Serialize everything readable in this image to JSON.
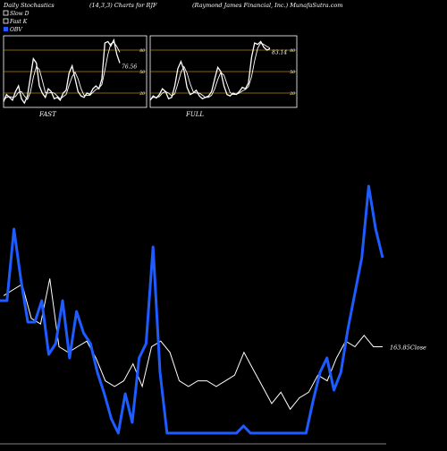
{
  "header": {
    "left": "Daily Stochastics",
    "center": "(14,3,3) Charts for RJF",
    "right": "(Raymond James Financial, Inc.) MunafaSutra.com"
  },
  "legend": [
    {
      "label": "Slow  D",
      "color": "#ffffff",
      "swatch": "box"
    },
    {
      "label": "Fast K",
      "color": "#ffffff",
      "swatch": "box"
    },
    {
      "label": "OBV",
      "color": "#1e5cff",
      "swatch": "fill"
    }
  ],
  "colors": {
    "background": "#000000",
    "accent": "#1e5cff",
    "guide": "#b8860b",
    "line": "#ffffff"
  },
  "chart_data": [
    {
      "type": "line",
      "title": "FAST",
      "ylim": [
        0,
        100
      ],
      "guides": [
        80,
        50,
        20
      ],
      "guide_labels": [
        "80",
        "50",
        "20"
      ],
      "last_label": "76.56",
      "series": [
        {
          "name": "Fast K",
          "values": [
            8,
            18,
            14,
            10,
            22,
            30,
            12,
            6,
            16,
            42,
            68,
            62,
            30,
            20,
            14,
            26,
            22,
            12,
            14,
            10,
            20,
            24,
            48,
            58,
            40,
            22,
            16,
            14,
            20,
            18,
            26,
            30,
            26,
            40,
            90,
            92,
            86,
            94,
            74,
            62
          ]
        },
        {
          "name": "Slow  D",
          "values": [
            10,
            14,
            15,
            14,
            15,
            21,
            22,
            16,
            11,
            21,
            42,
            57,
            53,
            38,
            21,
            20,
            21,
            20,
            16,
            12,
            15,
            18,
            31,
            43,
            49,
            40,
            26,
            17,
            17,
            17,
            21,
            25,
            27,
            32,
            52,
            74,
            89,
            91,
            85,
            77
          ]
        }
      ]
    },
    {
      "type": "line",
      "title": "FULL",
      "ylim": [
        0,
        100
      ],
      "guides": [
        80,
        50,
        20
      ],
      "guide_labels": [
        "80",
        "50",
        "20"
      ],
      "last_label": "83.14",
      "series": [
        {
          "name": "Fast K",
          "values": [
            10,
            16,
            13,
            18,
            26,
            22,
            12,
            14,
            30,
            54,
            64,
            52,
            28,
            18,
            20,
            24,
            16,
            12,
            14,
            16,
            22,
            40,
            56,
            50,
            30,
            18,
            16,
            20,
            18,
            22,
            28,
            26,
            34,
            70,
            90,
            88,
            92,
            84,
            80,
            82
          ]
        },
        {
          "name": "Slow  D",
          "values": [
            11,
            14,
            14,
            15,
            20,
            22,
            20,
            16,
            19,
            33,
            49,
            57,
            48,
            33,
            22,
            20,
            20,
            17,
            14,
            14,
            17,
            26,
            39,
            49,
            45,
            33,
            21,
            18,
            18,
            20,
            23,
            25,
            29,
            43,
            65,
            83,
            90,
            88,
            85,
            83
          ]
        }
      ]
    },
    {
      "type": "line",
      "close_label": "163.85Close",
      "series": [
        {
          "name": "Close",
          "values": [
            172,
            173,
            174,
            168,
            167,
            175,
            163,
            162,
            163,
            164,
            161,
            157,
            156,
            157,
            160,
            156,
            163,
            164,
            162,
            157,
            156,
            157,
            157,
            156,
            157,
            158,
            162,
            159,
            156,
            153,
            155,
            152,
            154,
            155,
            158,
            157,
            161,
            164,
            163,
            165,
            163,
            163
          ]
        },
        {
          "name": "OBV",
          "values": [
            40,
            40,
            60,
            46,
            34,
            34,
            40,
            25,
            28,
            40,
            24,
            37,
            31,
            28,
            20,
            14,
            7,
            3,
            14,
            6,
            24,
            28,
            55,
            20,
            3,
            3,
            3,
            3,
            3,
            3,
            3,
            3,
            3,
            3,
            3,
            5,
            3,
            3,
            3,
            3,
            3,
            3,
            3,
            3,
            3,
            12,
            20,
            24,
            15,
            20,
            32,
            42,
            52,
            72,
            60,
            52
          ]
        }
      ]
    }
  ]
}
